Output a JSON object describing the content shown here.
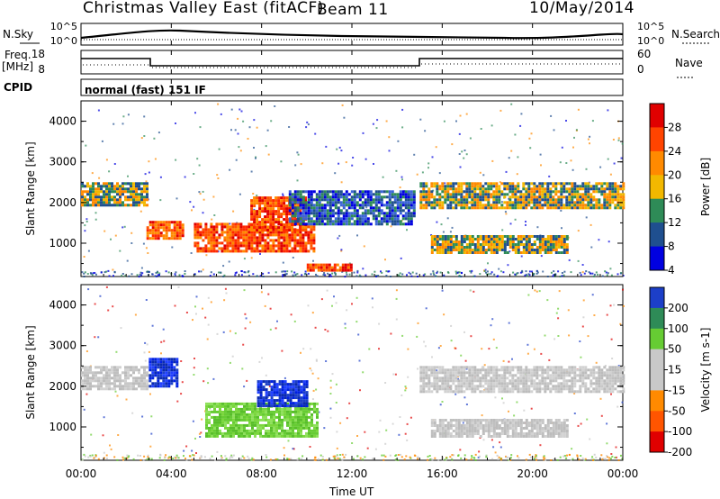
{
  "header": {
    "station": "Christmas Valley East (fitACF)",
    "beam": "Beam 11",
    "date": "10/May/2014"
  },
  "noise_panel": {
    "left_label": "N.Sky",
    "right_label": "N.Search",
    "left_ticks": [
      "10^5",
      "10^0"
    ],
    "right_ticks": [
      "10^5",
      "10^0"
    ]
  },
  "freq_panel": {
    "left_label_1": "Freq.",
    "left_label_2": "[MHz]",
    "right_label": "Nave",
    "left_ticks": [
      "18",
      "8"
    ],
    "right_ticks": [
      "60",
      "0"
    ]
  },
  "cpid": {
    "label": "CPID",
    "value": "normal (fast) 151 IF"
  },
  "chart_data": [
    {
      "type": "heatmap",
      "name_text": "Power",
      "xlabel": "Time UT",
      "ylabel": "Slant Range [km]",
      "x_ticks": [
        "00:00",
        "04:00",
        "08:00",
        "12:00",
        "16:00",
        "20:00",
        "00:00"
      ],
      "y_ticks": [
        1000,
        2000,
        3000,
        4000
      ],
      "ylim": [
        180,
        4500
      ],
      "xlim_hours": [
        0,
        24
      ],
      "colorbar_label": "Power [dB]",
      "colorbar_ticks": [
        "28",
        "24",
        "20",
        "16",
        "12",
        "8",
        "4"
      ],
      "colorbar_colors": [
        "#e00000",
        "#ff4400",
        "#ff8a00",
        "#f2b800",
        "#2e8b57",
        "#1f4f8f",
        "#0000e0"
      ],
      "features": [
        {
          "t0": 0.0,
          "t1": 2.9,
          "r0": 1950,
          "r1": 2500,
          "level": "mid"
        },
        {
          "t0": 2.9,
          "t1": 4.5,
          "r0": 1150,
          "r1": 1550,
          "level": "high"
        },
        {
          "t0": 5.0,
          "t1": 10.3,
          "r0": 800,
          "r1": 1500,
          "level": "high"
        },
        {
          "t0": 7.5,
          "t1": 10.0,
          "r0": 1300,
          "r1": 2150,
          "level": "high"
        },
        {
          "t0": 10.0,
          "t1": 12.0,
          "r0": 330,
          "r1": 500,
          "level": "high"
        },
        {
          "t0": 9.2,
          "t1": 14.8,
          "r0": 1500,
          "r1": 2300,
          "level": "low"
        },
        {
          "t0": 15.0,
          "t1": 24.0,
          "r0": 1900,
          "r1": 2500,
          "level": "mid"
        },
        {
          "t0": 15.5,
          "t1": 21.5,
          "r0": 800,
          "r1": 1200,
          "level": "mid"
        }
      ]
    },
    {
      "type": "heatmap",
      "name_text": "Velocity",
      "xlabel": "Time UT",
      "ylabel": "Slant Range [km]",
      "x_ticks": [
        "00:00",
        "04:00",
        "08:00",
        "12:00",
        "16:00",
        "20:00",
        "00:00"
      ],
      "y_ticks": [
        1000,
        2000,
        3000,
        4000
      ],
      "ylim": [
        180,
        4500
      ],
      "xlim_hours": [
        0,
        24
      ],
      "colorbar_label": "Velocity [m s-1]",
      "colorbar_ticks": [
        "200",
        "100",
        "50",
        "15",
        "-15",
        "-50",
        "-100",
        "-200"
      ],
      "colorbar_colors": [
        "#1c3fc8",
        "#2e8b57",
        "#66cc33",
        "#c8c8c8",
        "#c8c8c8",
        "#ff8a00",
        "#ff5500",
        "#e00000"
      ],
      "features": [
        {
          "t0": 0.0,
          "t1": 2.9,
          "r0": 1950,
          "r1": 2500,
          "level": "grey"
        },
        {
          "t0": 3.0,
          "t1": 4.2,
          "r0": 2000,
          "r1": 2700,
          "level": "blue"
        },
        {
          "t0": 5.5,
          "t1": 10.5,
          "r0": 800,
          "r1": 1600,
          "level": "green"
        },
        {
          "t0": 7.8,
          "t1": 10.0,
          "r0": 1500,
          "r1": 2150,
          "level": "blue"
        },
        {
          "t0": 15.0,
          "t1": 24.0,
          "r0": 1900,
          "r1": 2500,
          "level": "grey"
        },
        {
          "t0": 15.5,
          "t1": 21.5,
          "r0": 800,
          "r1": 1200,
          "level": "grey"
        }
      ]
    }
  ]
}
